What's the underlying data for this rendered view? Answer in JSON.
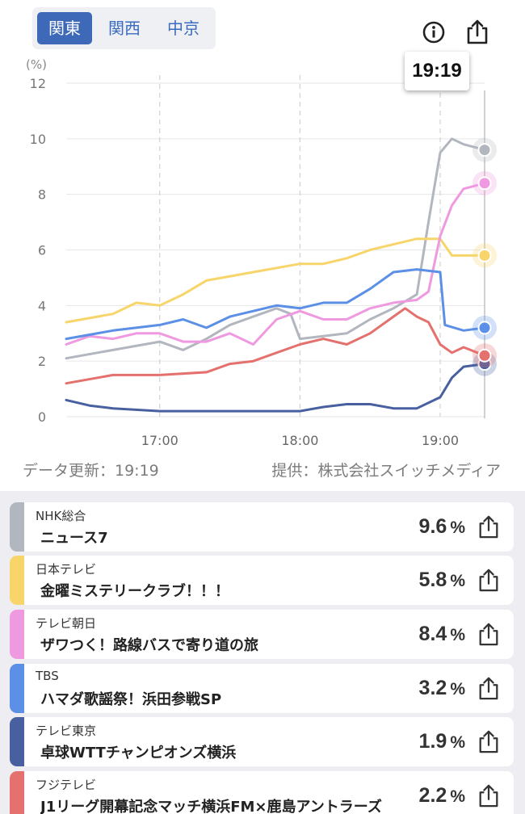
{
  "region_tabs": [
    "関東",
    "関西",
    "中京"
  ],
  "active_region": 0,
  "header": {
    "time_badge": "19:19"
  },
  "chart_data": {
    "type": "line",
    "ylabel": "(%)",
    "ylim": [
      0,
      12
    ],
    "yticks": [
      0,
      2,
      4,
      6,
      8,
      10,
      12
    ],
    "xlim": [
      "16:20",
      "19:19"
    ],
    "xticks": [
      "17:00",
      "18:00",
      "19:00"
    ],
    "grid": true,
    "cursor_time": "19:19",
    "series": [
      {
        "name": "NHK総合",
        "color": "#b2b6be",
        "end_value": 9.6,
        "x": [
          "16:20",
          "16:40",
          "17:00",
          "17:10",
          "17:20",
          "17:30",
          "17:40",
          "17:50",
          "17:56",
          "18:00",
          "18:20",
          "18:30",
          "18:40",
          "18:50",
          "18:55",
          "19:00",
          "19:05",
          "19:10",
          "19:19"
        ],
        "values": [
          2.1,
          2.4,
          2.7,
          2.4,
          2.8,
          3.3,
          3.6,
          3.9,
          3.7,
          2.8,
          3.0,
          3.5,
          3.9,
          4.4,
          7.0,
          9.5,
          10.0,
          9.8,
          9.6
        ]
      },
      {
        "name": "日本テレビ",
        "color": "#f7d56a",
        "end_value": 5.8,
        "x": [
          "16:20",
          "16:40",
          "16:50",
          "17:00",
          "17:10",
          "17:20",
          "17:40",
          "18:00",
          "18:10",
          "18:20",
          "18:30",
          "18:40",
          "18:50",
          "19:00",
          "19:05",
          "19:19"
        ],
        "values": [
          3.4,
          3.7,
          4.1,
          4.0,
          4.4,
          4.9,
          5.2,
          5.5,
          5.5,
          5.7,
          6.0,
          6.2,
          6.4,
          6.4,
          5.8,
          5.8
        ]
      },
      {
        "name": "テレビ朝日",
        "color": "#ef99e0",
        "end_value": 8.4,
        "x": [
          "16:20",
          "16:30",
          "16:40",
          "16:50",
          "17:00",
          "17:10",
          "17:20",
          "17:30",
          "17:40",
          "17:50",
          "18:00",
          "18:10",
          "18:20",
          "18:30",
          "18:40",
          "18:50",
          "18:55",
          "19:00",
          "19:05",
          "19:10",
          "19:19"
        ],
        "values": [
          2.6,
          2.9,
          2.8,
          3.0,
          3.0,
          2.7,
          2.7,
          3.0,
          2.6,
          3.5,
          3.8,
          3.5,
          3.5,
          3.9,
          4.1,
          4.2,
          4.5,
          6.5,
          7.6,
          8.2,
          8.4
        ]
      },
      {
        "name": "TBS",
        "color": "#5c8fe6",
        "end_value": 3.2,
        "x": [
          "16:20",
          "16:40",
          "17:00",
          "17:10",
          "17:20",
          "17:30",
          "17:40",
          "17:50",
          "18:00",
          "18:10",
          "18:20",
          "18:30",
          "18:40",
          "18:50",
          "19:00",
          "19:02",
          "19:10",
          "19:19"
        ],
        "values": [
          2.8,
          3.1,
          3.3,
          3.5,
          3.2,
          3.6,
          3.8,
          4.0,
          3.9,
          4.1,
          4.1,
          4.6,
          5.2,
          5.3,
          5.2,
          3.3,
          3.1,
          3.2
        ]
      },
      {
        "name": "テレビ東京",
        "color": "#4860a0",
        "end_value": 1.9,
        "x": [
          "16:20",
          "16:30",
          "16:40",
          "17:00",
          "17:30",
          "17:50",
          "18:00",
          "18:10",
          "18:20",
          "18:30",
          "18:40",
          "18:50",
          "19:00",
          "19:05",
          "19:10",
          "19:19"
        ],
        "values": [
          0.6,
          0.4,
          0.3,
          0.2,
          0.2,
          0.2,
          0.2,
          0.35,
          0.45,
          0.45,
          0.3,
          0.3,
          0.7,
          1.4,
          1.8,
          1.9
        ]
      },
      {
        "name": "フジテレビ",
        "color": "#e4716e",
        "end_value": 2.2,
        "x": [
          "16:20",
          "16:40",
          "17:00",
          "17:20",
          "17:30",
          "17:40",
          "17:50",
          "18:00",
          "18:10",
          "18:20",
          "18:30",
          "18:40",
          "18:45",
          "18:50",
          "18:55",
          "19:00",
          "19:05",
          "19:10",
          "19:19"
        ],
        "values": [
          1.2,
          1.5,
          1.5,
          1.6,
          1.9,
          2.0,
          2.3,
          2.6,
          2.8,
          2.6,
          3.0,
          3.6,
          3.9,
          3.6,
          3.4,
          2.6,
          2.3,
          2.5,
          2.2
        ]
      }
    ]
  },
  "meta": {
    "updated": "データ更新：19:19",
    "provider": "提供：株式会社スイッチメディア"
  },
  "programs": [
    {
      "channel": "NHK総合",
      "title": "ニュース7",
      "value": "9.6",
      "unit": "%",
      "color": "#b2b6be"
    },
    {
      "channel": "日本テレビ",
      "title": "金曜ミステリークラブ！！！",
      "value": "5.8",
      "unit": "%",
      "color": "#f7d56a"
    },
    {
      "channel": "テレビ朝日",
      "title": "ザワつく！路線バスで寄り道の旅",
      "value": "8.4",
      "unit": "%",
      "color": "#ef99e0"
    },
    {
      "channel": "TBS",
      "title": "ハマダ歌謡祭！浜田参戦SP",
      "value": "3.2",
      "unit": "%",
      "color": "#5c8fe6"
    },
    {
      "channel": "テレビ東京",
      "title": "卓球WTTチャンピオンズ横浜",
      "value": "1.9",
      "unit": "%",
      "color": "#4860a0"
    },
    {
      "channel": "フジテレビ",
      "title": "J1リーグ開幕記念マッチ横浜FM×鹿島アントラーズ",
      "value": "2.2",
      "unit": "%",
      "color": "#e4716e"
    }
  ]
}
